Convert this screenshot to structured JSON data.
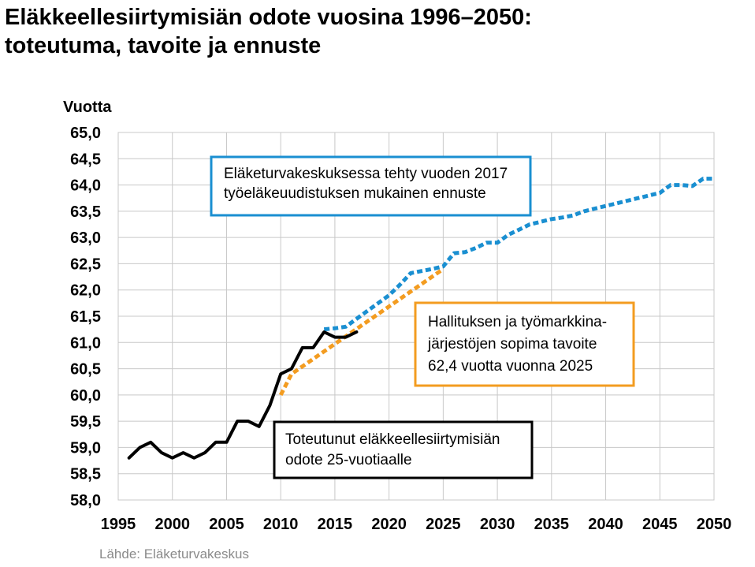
{
  "chart_data": {
    "type": "line",
    "title": [
      "Eläkkeellesiirtymisiän odote vuosina 1996–2050:",
      "toteutuma, tavoite ja ennuste"
    ],
    "ylabel": "Vuotta",
    "xlabel": "",
    "xlim": [
      1995,
      2050
    ],
    "ylim": [
      58.0,
      65.0
    ],
    "x_ticks": [
      "1995",
      "2000",
      "2005",
      "2010",
      "2015",
      "2020",
      "2025",
      "2030",
      "2035",
      "2040",
      "2045",
      "2050"
    ],
    "y_ticks": [
      "58,0",
      "58,5",
      "59,0",
      "59,5",
      "60,0",
      "60,5",
      "61,0",
      "61,5",
      "62,0",
      "62,5",
      "63,0",
      "63,5",
      "64,0",
      "64,5",
      "65,0"
    ],
    "grid": true,
    "series": [
      {
        "name": "Toteutunut eläkkeellesiirtymisiän odote 25-vuotiaalle",
        "color": "#000000",
        "style": "solid",
        "x": [
          1996,
          1997,
          1998,
          1999,
          2000,
          2001,
          2002,
          2003,
          2004,
          2005,
          2006,
          2007,
          2008,
          2009,
          2010,
          2011,
          2012,
          2013,
          2014,
          2015,
          2016,
          2017
        ],
        "values": [
          58.8,
          59.0,
          59.1,
          58.9,
          58.8,
          58.9,
          58.8,
          58.9,
          59.1,
          59.1,
          59.5,
          59.5,
          59.4,
          59.8,
          60.4,
          60.5,
          60.9,
          60.9,
          61.2,
          61.1,
          61.1,
          61.2
        ]
      },
      {
        "name": "Hallituksen ja työmarkkinajärjestöjen sopima tavoite 62,4 vuotta vuonna 2025",
        "color": "#f39c20",
        "style": "dashed",
        "x": [
          2010,
          2011,
          2025
        ],
        "values": [
          60.0,
          60.4,
          62.4
        ]
      },
      {
        "name": "Eläketurvakeskuksessa tehty vuoden 2017 työeläkeuudistuksen mukainen ennuste",
        "color": "#1a8fd1",
        "style": "dashed",
        "x": [
          2014,
          2015,
          2016,
          2017,
          2018,
          2019,
          2020,
          2021,
          2022,
          2023,
          2024,
          2025,
          2026,
          2027,
          2028,
          2029,
          2030,
          2031,
          2032,
          2033,
          2034,
          2035,
          2036,
          2037,
          2038,
          2039,
          2040,
          2041,
          2042,
          2043,
          2044,
          2045,
          2046,
          2047,
          2048,
          2049,
          2050
        ],
        "values": [
          61.25,
          61.27,
          61.3,
          61.45,
          61.6,
          61.75,
          61.9,
          62.1,
          62.32,
          62.36,
          62.4,
          62.45,
          62.7,
          62.72,
          62.8,
          62.9,
          62.9,
          63.05,
          63.15,
          63.25,
          63.3,
          63.35,
          63.38,
          63.42,
          63.5,
          63.55,
          63.6,
          63.65,
          63.7,
          63.75,
          63.8,
          63.85,
          64.0,
          64.0,
          63.98,
          64.12,
          64.12
        ]
      }
    ],
    "annotations": [
      {
        "id": "forecast",
        "color": "#1a8fd1",
        "lines": [
          "Eläketurvakeskuksessa tehty vuoden 2017",
          "työeläkeuudistuksen mukainen ennuste"
        ]
      },
      {
        "id": "target",
        "color": "#f39c20",
        "lines": [
          "Hallituksen ja työmarkkina-",
          "järjestöjen sopima tavoite",
          "62,4 vuotta vuonna 2025"
        ]
      },
      {
        "id": "actual",
        "color": "#000000",
        "lines": [
          "Toteutunut eläkkeellesiirtymisiän",
          "odote 25-vuotiaalle"
        ]
      }
    ],
    "source": "Lähde: Eläketurvakeskus"
  }
}
